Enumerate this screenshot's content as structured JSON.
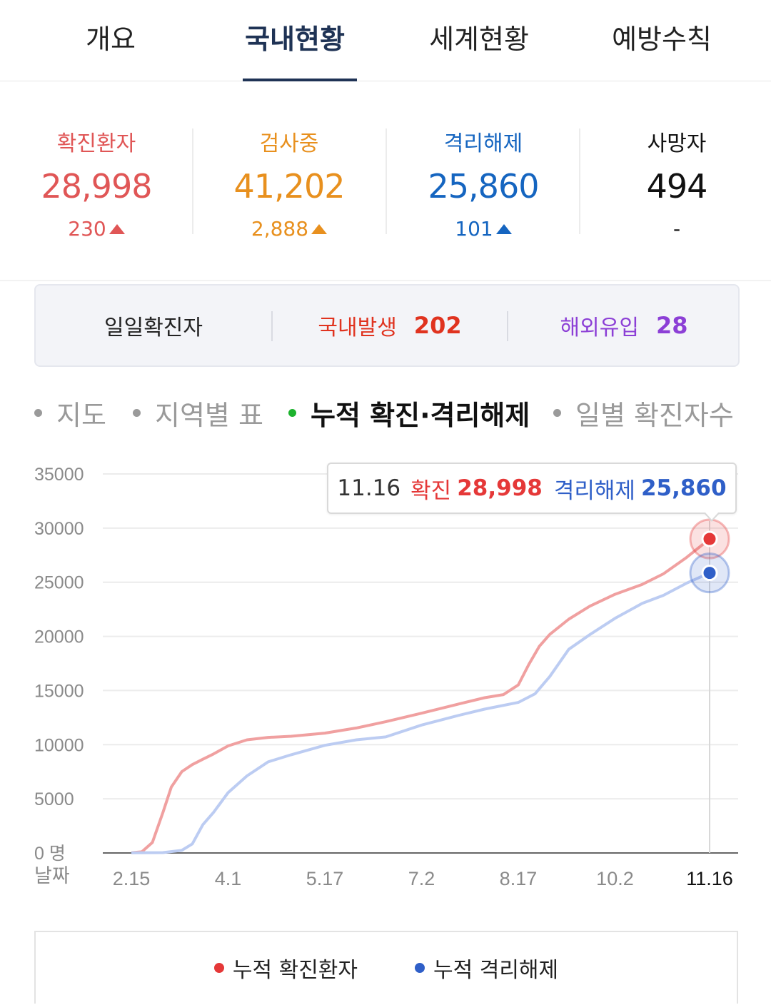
{
  "tabs": [
    {
      "label": "개요",
      "active": false
    },
    {
      "label": "국내현황",
      "active": true
    },
    {
      "label": "세계현황",
      "active": false
    },
    {
      "label": "예방수칙",
      "active": false
    }
  ],
  "stats": [
    {
      "label": "확진환자",
      "value": "28,998",
      "delta": "230",
      "trend": "up",
      "color": "#e05656"
    },
    {
      "label": "검사중",
      "value": "41,202",
      "delta": "2,888",
      "trend": "up",
      "color": "#e8901e"
    },
    {
      "label": "격리해제",
      "value": "25,860",
      "delta": "101",
      "trend": "up",
      "color": "#1565c0"
    },
    {
      "label": "사망자",
      "value": "494",
      "delta": "-",
      "trend": "none",
      "color": "#111111"
    }
  ],
  "daily": {
    "title": "일일확진자",
    "domestic_label": "국내발생",
    "domestic_value": "202",
    "overseas_label": "해외유입",
    "overseas_value": "28",
    "domestic_color": "#e0331f",
    "overseas_color": "#8c3fd6"
  },
  "chart_tabs": [
    {
      "label": "지도",
      "active": false
    },
    {
      "label": "지역별 표",
      "active": false
    },
    {
      "label": "누적 확진·격리해제",
      "active": true
    },
    {
      "label": "일별 확진자수",
      "active": false
    }
  ],
  "tooltip": {
    "date": "11.16",
    "confirmed_label": "확진",
    "confirmed_value": "28,998",
    "released_label": "격리해제",
    "released_value": "25,860"
  },
  "legend": {
    "confirmed": "누적 확진환자",
    "released": "누적 격리해제"
  },
  "chart_data": {
    "type": "line",
    "x_ticks": [
      "2.15",
      "4.1",
      "5.17",
      "7.2",
      "8.17",
      "10.2",
      "11.16"
    ],
    "x_axis_label": "날짜",
    "y_unit_label": "명",
    "y_ticks": [
      0,
      5000,
      10000,
      15000,
      20000,
      25000,
      30000,
      35000
    ],
    "ylim": [
      0,
      35000
    ],
    "grid": true,
    "highlight_x": "11.16",
    "series": [
      {
        "name": "누적 확진환자",
        "color": "#f0a0a0",
        "marker_color": "#e53838",
        "points": [
          [
            "2.15",
            28
          ],
          [
            "2.20",
            104
          ],
          [
            "2.25",
            977
          ],
          [
            "3.1",
            3736
          ],
          [
            "3.5",
            6088
          ],
          [
            "3.10",
            7513
          ],
          [
            "3.15",
            8162
          ],
          [
            "3.20",
            8652
          ],
          [
            "3.25",
            9137
          ],
          [
            "4.1",
            9887
          ],
          [
            "4.10",
            10450
          ],
          [
            "4.20",
            10674
          ],
          [
            "5.1",
            10774
          ],
          [
            "5.17",
            11065
          ],
          [
            "6.1",
            11541
          ],
          [
            "6.15",
            12121
          ],
          [
            "7.2",
            12904
          ],
          [
            "7.20",
            13771
          ],
          [
            "8.1",
            14336
          ],
          [
            "8.10",
            14626
          ],
          [
            "8.17",
            15515
          ],
          [
            "8.22",
            17399
          ],
          [
            "8.27",
            19077
          ],
          [
            "9.1",
            20182
          ],
          [
            "9.10",
            21588
          ],
          [
            "9.20",
            22783
          ],
          [
            "10.2",
            23889
          ],
          [
            "10.15",
            24805
          ],
          [
            "10.25",
            25775
          ],
          [
            "11.5",
            27284
          ],
          [
            "11.16",
            28998
          ]
        ]
      },
      {
        "name": "누적 격리해제",
        "color": "#bcccf2",
        "marker_color": "#2f5fc8",
        "points": [
          [
            "2.15",
            10
          ],
          [
            "3.1",
            30
          ],
          [
            "3.10",
            247
          ],
          [
            "3.15",
            834
          ],
          [
            "3.20",
            2612
          ],
          [
            "3.25",
            3730
          ],
          [
            "4.1",
            5567
          ],
          [
            "4.10",
            7117
          ],
          [
            "4.20",
            8411
          ],
          [
            "5.1",
            9072
          ],
          [
            "5.17",
            9938
          ],
          [
            "6.1",
            10446
          ],
          [
            "6.15",
            10718
          ],
          [
            "7.2",
            11811
          ],
          [
            "7.20",
            12721
          ],
          [
            "8.1",
            13280
          ],
          [
            "8.17",
            13901
          ],
          [
            "8.25",
            14700
          ],
          [
            "9.1",
            16297
          ],
          [
            "9.10",
            18808
          ],
          [
            "9.20",
            20158
          ],
          [
            "10.2",
            21666
          ],
          [
            "10.15",
            23048
          ],
          [
            "10.25",
            23788
          ],
          [
            "11.5",
            24910
          ],
          [
            "11.16",
            25860
          ]
        ]
      }
    ]
  }
}
